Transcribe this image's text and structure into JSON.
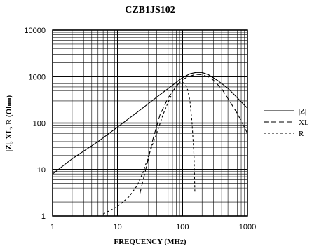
{
  "chart_data": {
    "type": "line",
    "title": "CZB1JS102",
    "xlabel": "FREQUENCY (MHz)",
    "ylabel": "|Z|, XL, R (Ohm)",
    "x_scale": "log",
    "y_scale": "log",
    "xlim": [
      1,
      1000
    ],
    "ylim": [
      1,
      10000
    ],
    "x_ticks": [
      "1",
      "10",
      "100",
      "1000"
    ],
    "y_ticks": [
      "1",
      "10",
      "100",
      "1000",
      "10000"
    ],
    "grid": true,
    "legend_position": "right",
    "series": [
      {
        "name": "|Z|",
        "dash": "solid",
        "points": [
          [
            1,
            8
          ],
          [
            2,
            17
          ],
          [
            5,
            40
          ],
          [
            10,
            82
          ],
          [
            20,
            170
          ],
          [
            40,
            360
          ],
          [
            70,
            650
          ],
          [
            100,
            950
          ],
          [
            130,
            1150
          ],
          [
            160,
            1230
          ],
          [
            200,
            1230
          ],
          [
            250,
            1100
          ],
          [
            350,
            820
          ],
          [
            500,
            560
          ],
          [
            700,
            350
          ],
          [
            900,
            240
          ],
          [
            1000,
            210
          ]
        ]
      },
      {
        "name": "XL",
        "dash": "long-dash",
        "points": [
          [
            22,
            3
          ],
          [
            28,
            12
          ],
          [
            35,
            45
          ],
          [
            45,
            150
          ],
          [
            60,
            350
          ],
          [
            80,
            620
          ],
          [
            100,
            870
          ],
          [
            120,
            980
          ],
          [
            140,
            1060
          ],
          [
            160,
            1120
          ],
          [
            200,
            1100
          ],
          [
            250,
            980
          ],
          [
            300,
            840
          ],
          [
            400,
            550
          ],
          [
            500,
            340
          ],
          [
            700,
            160
          ],
          [
            900,
            80
          ],
          [
            1000,
            60
          ]
        ]
      },
      {
        "name": "R",
        "dash": "short-dash",
        "points": [
          [
            6,
            1.1
          ],
          [
            10,
            1.6
          ],
          [
            15,
            2.6
          ],
          [
            20,
            4.5
          ],
          [
            25,
            9
          ],
          [
            30,
            20
          ],
          [
            40,
            60
          ],
          [
            50,
            150
          ],
          [
            60,
            280
          ],
          [
            70,
            450
          ],
          [
            80,
            620
          ],
          [
            90,
            720
          ],
          [
            100,
            750
          ],
          [
            110,
            700
          ],
          [
            120,
            520
          ],
          [
            130,
            300
          ],
          [
            140,
            100
          ],
          [
            150,
            20
          ],
          [
            155,
            3
          ]
        ]
      }
    ]
  }
}
